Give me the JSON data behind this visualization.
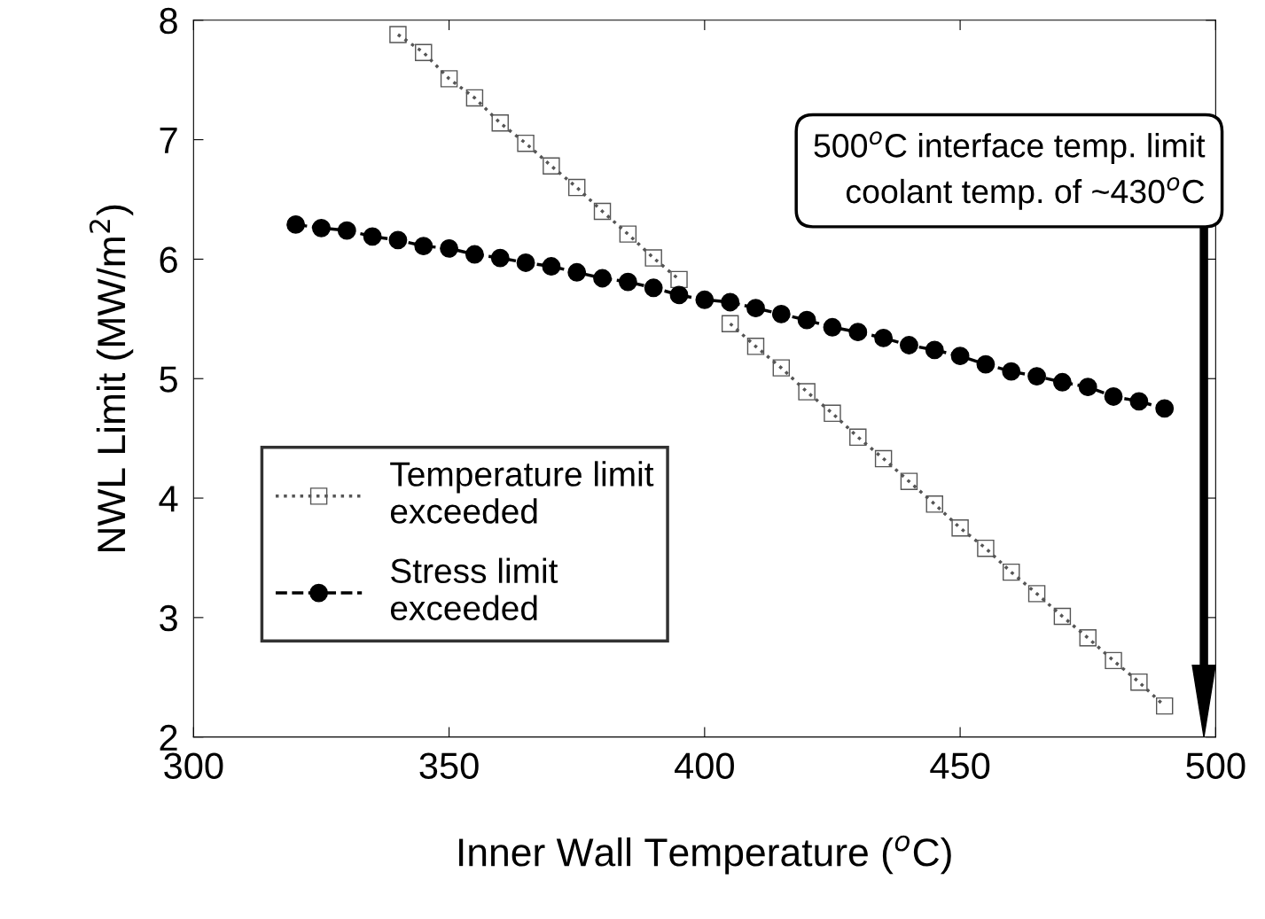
{
  "chart_data": {
    "type": "line",
    "xlabel": "Inner Wall Temperature ($^{o}$C)",
    "ylabel": "NWL Limit (MW/m$^{2}$)",
    "xlim": [
      300,
      500
    ],
    "xticks": [
      300,
      350,
      400,
      450,
      500
    ],
    "ylim": [
      2,
      8
    ],
    "yticks": [
      2,
      3,
      4,
      5,
      6,
      7,
      8
    ],
    "grid": false,
    "legend": "bottom left",
    "series": [
      {
        "name": "Temperature limit\nexceeded",
        "color": "#555555",
        "marker": "square",
        "line_style": "dotted",
        "x": [
          340,
          345,
          350,
          355,
          360,
          365,
          370,
          375,
          380,
          385,
          390,
          395,
          400,
          405,
          410,
          415,
          420,
          425,
          430,
          435,
          440,
          445,
          450,
          455,
          460,
          465,
          470,
          475,
          480,
          485,
          490
        ],
        "values": [
          7.88,
          7.73,
          7.51,
          7.35,
          7.14,
          6.97,
          6.78,
          6.6,
          6.4,
          6.21,
          6.01,
          5.83,
          null,
          5.46,
          5.27,
          5.09,
          4.89,
          4.71,
          4.51,
          4.33,
          4.14,
          3.95,
          3.75,
          3.58,
          3.38,
          3.2,
          3.01,
          2.83,
          2.64,
          2.46,
          2.26
        ]
      },
      {
        "name": "Stress limit\nexceeded",
        "color": "#000000",
        "marker": "circle",
        "line_style": "dashed",
        "x": [
          320,
          325,
          330,
          335,
          340,
          345,
          350,
          355,
          360,
          365,
          370,
          375,
          380,
          385,
          390,
          395,
          400,
          405,
          410,
          415,
          420,
          425,
          430,
          435,
          440,
          445,
          450,
          455,
          460,
          465,
          470,
          475,
          480,
          485,
          490
        ],
        "values": [
          6.29,
          6.26,
          6.24,
          6.19,
          6.16,
          6.11,
          6.09,
          6.04,
          6.01,
          5.97,
          5.94,
          5.89,
          5.84,
          5.81,
          5.76,
          5.7,
          5.66,
          5.64,
          5.59,
          5.54,
          5.49,
          5.43,
          5.39,
          5.34,
          5.28,
          5.24,
          5.19,
          5.12,
          5.06,
          5.02,
          4.97,
          4.93,
          4.85,
          4.81,
          4.75
        ]
      }
    ],
    "annotations": [
      "500$^{o}$C interface temp. limit\ncoolant temp. of ~430$^{o}$C"
    ]
  }
}
